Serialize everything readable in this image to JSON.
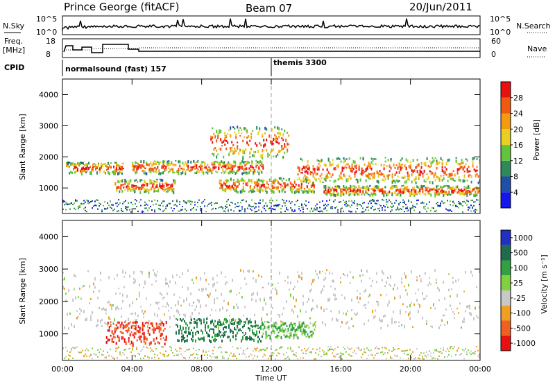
{
  "header": {
    "station": "Prince George (fitACF)",
    "beam": "Beam 07",
    "date": "20/Jun/2011"
  },
  "panels": {
    "nsky_label": "N.Sky",
    "nsky_ticks": [
      "10^5",
      "10^0"
    ],
    "nsearch_label": "N.Search",
    "nsearch_ticks": [
      "10^5",
      "10^0"
    ],
    "freq_label_1": "Freq.",
    "freq_label_2": "[MHz]",
    "freq_ticks": [
      "18",
      "8"
    ],
    "nave_label": "Nave",
    "nave_ticks": [
      "60",
      "0"
    ],
    "cpid_label": "CPID",
    "cpid_1": "normalsound (fast) 157",
    "cpid_2": "themis 3300"
  },
  "chart_data": [
    {
      "type": "heatmap",
      "name": "power",
      "ylabel": "Slant Range [km]",
      "ylim": [
        180,
        4500
      ],
      "yticks": [
        "1000",
        "2000",
        "3000",
        "4000"
      ],
      "colorbar_label": "Power [dB]",
      "colorbar_ticks": [
        "4",
        "8",
        "12",
        "16",
        "20",
        "24",
        "28"
      ],
      "colorbar_colors": [
        "#1515f0",
        "#1f4fa8",
        "#2f8a5a",
        "#62c43a",
        "#e8d020",
        "#f59a10",
        "#f05a10",
        "#e81010"
      ],
      "features": [
        {
          "start": 0.2,
          "end": 3.5,
          "range": [
            1500,
            1850
          ]
        },
        {
          "start": 3.0,
          "end": 6.5,
          "range": [
            900,
            1300
          ]
        },
        {
          "start": 4.0,
          "end": 11.5,
          "range": [
            1500,
            1900
          ]
        },
        {
          "start": 8.5,
          "end": 13.0,
          "range": [
            2000,
            3000
          ]
        },
        {
          "start": 9.0,
          "end": 14.5,
          "range": [
            900,
            1350
          ]
        },
        {
          "start": 13.5,
          "end": 24.0,
          "range": [
            1200,
            2000
          ]
        },
        {
          "start": 15.0,
          "end": 24.0,
          "range": [
            800,
            1100
          ]
        }
      ]
    },
    {
      "type": "heatmap",
      "name": "velocity",
      "ylabel": "Slant Range [km]",
      "ylim": [
        180,
        4500
      ],
      "yticks": [
        "1000",
        "2000",
        "3000",
        "4000"
      ],
      "xticks": [
        "00:00",
        "04:00",
        "08:00",
        "12:00",
        "16:00",
        "20:00",
        "00:00"
      ],
      "xlabel": "Time UT",
      "colorbar_label": "Velocity [m s⁻¹]",
      "colorbar_ticks": [
        "1000",
        "500",
        "100",
        "25",
        "-25",
        "-100",
        "-500",
        "-1000"
      ],
      "colorbar_colors": [
        "#2030c0",
        "#206a50",
        "#30a040",
        "#80d040",
        "#c8c8c8",
        "#f0a020",
        "#f06020",
        "#e81010"
      ],
      "features": [
        {
          "start": 2.5,
          "end": 6.0,
          "range": [
            700,
            1400
          ],
          "velocity": -500
        },
        {
          "start": 6.5,
          "end": 11.5,
          "range": [
            800,
            1500
          ],
          "velocity": 500
        },
        {
          "start": 11.5,
          "end": 14.5,
          "range": [
            900,
            1400
          ],
          "velocity": 100
        },
        {
          "start": 0.0,
          "end": 24.0,
          "range": [
            1200,
            3000
          ],
          "velocity": 0
        }
      ]
    }
  ]
}
